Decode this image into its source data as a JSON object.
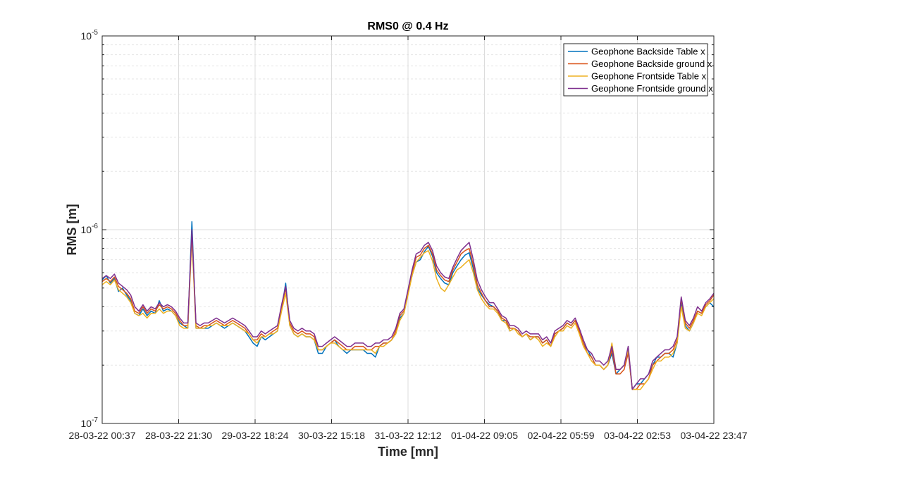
{
  "chart_data": {
    "type": "line",
    "title": "RMS0 @ 0.4 Hz",
    "xlabel": "Time [mn]",
    "ylabel": "RMS [m]",
    "yscale": "log",
    "ylim": [
      1e-07,
      1e-05
    ],
    "grid": true,
    "legend_position": "top-right",
    "x_ticks": [
      "28-03-22 00:37",
      "28-03-22 21:30",
      "29-03-22 18:24",
      "30-03-22 15:18",
      "31-03-22 12:12",
      "01-04-22 09:05",
      "02-04-22 05:59",
      "03-04-22 02:53",
      "03-04-22 23:47"
    ],
    "y_ticks": [
      {
        "value": 1e-07,
        "base": "10",
        "exp": "-7"
      },
      {
        "value": 1e-06,
        "base": "10",
        "exp": "-6"
      },
      {
        "value": 1e-05,
        "base": "10",
        "exp": "-5"
      }
    ],
    "x_start": "28-03-22 00:37",
    "x_end": "03-04-22 23:47",
    "series": [
      {
        "name": "Geophone Backside Table x",
        "color": "#0072BD",
        "values": [
          5.5e-07,
          5.8e-07,
          5.3e-07,
          5.6e-07,
          4.8e-07,
          5e-07,
          4.6e-07,
          4.3e-07,
          3.7e-07,
          3.6e-07,
          3.9e-07,
          3.6e-07,
          3.8e-07,
          3.7e-07,
          4.3e-07,
          3.8e-07,
          3.9e-07,
          3.8e-07,
          3.6e-07,
          3.3e-07,
          3.2e-07,
          3.1e-07,
          1.1e-06,
          3.1e-07,
          3.1e-07,
          3.1e-07,
          3.1e-07,
          3.2e-07,
          3.3e-07,
          3.2e-07,
          3.1e-07,
          3.2e-07,
          3.3e-07,
          3.2e-07,
          3.1e-07,
          3e-07,
          2.8e-07,
          2.6e-07,
          2.5e-07,
          2.8e-07,
          2.7e-07,
          2.8e-07,
          2.9e-07,
          3e-07,
          3.9e-07,
          5.3e-07,
          3.2e-07,
          2.9e-07,
          2.8e-07,
          2.9e-07,
          2.8e-07,
          2.8e-07,
          2.7e-07,
          2.3e-07,
          2.3e-07,
          2.5e-07,
          2.6e-07,
          2.7e-07,
          2.5e-07,
          2.4e-07,
          2.3e-07,
          2.4e-07,
          2.4e-07,
          2.4e-07,
          2.4e-07,
          2.3e-07,
          2.3e-07,
          2.2e-07,
          2.5e-07,
          2.6e-07,
          2.6e-07,
          2.7e-07,
          2.9e-07,
          3.5e-07,
          3.7e-07,
          4.7e-07,
          5.8e-07,
          6.8e-07,
          7e-07,
          7.7e-07,
          8.2e-07,
          7.3e-07,
          6e-07,
          5.6e-07,
          5.3e-07,
          5.2e-07,
          6e-07,
          6.5e-07,
          7e-07,
          7.4e-07,
          7.6e-07,
          6.3e-07,
          5e-07,
          4.6e-07,
          4.3e-07,
          4.1e-07,
          4e-07,
          3.8e-07,
          3.4e-07,
          3.4e-07,
          3e-07,
          3.1e-07,
          3e-07,
          2.8e-07,
          2.9e-07,
          2.7e-07,
          2.8e-07,
          2.8e-07,
          2.6e-07,
          2.7e-07,
          2.5e-07,
          2.9e-07,
          3e-07,
          3.1e-07,
          3.3e-07,
          3.2e-07,
          3.4e-07,
          3e-07,
          2.6e-07,
          2.4e-07,
          2.2e-07,
          2e-07,
          2e-07,
          1.9e-07,
          2e-07,
          2.3e-07,
          1.8e-07,
          1.9e-07,
          2e-07,
          2.4e-07,
          1.5e-07,
          1.6e-07,
          1.6e-07,
          1.7e-07,
          1.8e-07,
          2e-07,
          2.2e-07,
          2.2e-07,
          2.3e-07,
          2.3e-07,
          2.2e-07,
          2.6e-07,
          4.2e-07,
          3.2e-07,
          3e-07,
          3.3e-07,
          3.8e-07,
          3.7e-07,
          4e-07,
          4.2e-07,
          4e-07
        ]
      },
      {
        "name": "Geophone Backside ground x",
        "color": "#D95319",
        "values": [
          5.4e-07,
          5.6e-07,
          5.4e-07,
          5.7e-07,
          5.1e-07,
          4.9e-07,
          4.7e-07,
          4.4e-07,
          3.8e-07,
          3.7e-07,
          4e-07,
          3.7e-07,
          3.9e-07,
          3.8e-07,
          4.1e-07,
          3.9e-07,
          4e-07,
          3.9e-07,
          3.7e-07,
          3.4e-07,
          3.2e-07,
          3.2e-07,
          9.5e-07,
          3.2e-07,
          3.1e-07,
          3.2e-07,
          3.2e-07,
          3.3e-07,
          3.4e-07,
          3.3e-07,
          3.2e-07,
          3.3e-07,
          3.4e-07,
          3.3e-07,
          3.2e-07,
          3.1e-07,
          2.9e-07,
          2.7e-07,
          2.7e-07,
          2.9e-07,
          2.8e-07,
          2.9e-07,
          3e-07,
          3.1e-07,
          4e-07,
          5e-07,
          3.3e-07,
          3e-07,
          2.9e-07,
          3e-07,
          2.9e-07,
          2.9e-07,
          2.8e-07,
          2.4e-07,
          2.4e-07,
          2.5e-07,
          2.6e-07,
          2.7e-07,
          2.6e-07,
          2.5e-07,
          2.4e-07,
          2.4e-07,
          2.5e-07,
          2.5e-07,
          2.5e-07,
          2.4e-07,
          2.4e-07,
          2.5e-07,
          2.5e-07,
          2.6e-07,
          2.6e-07,
          2.7e-07,
          3e-07,
          3.6e-07,
          3.8e-07,
          4.8e-07,
          6e-07,
          7.2e-07,
          7.4e-07,
          8e-07,
          8.3e-07,
          7.5e-07,
          6.2e-07,
          5.8e-07,
          5.5e-07,
          5.4e-07,
          6.2e-07,
          6.8e-07,
          7.5e-07,
          7.8e-07,
          8e-07,
          6.6e-07,
          5.2e-07,
          4.7e-07,
          4.3e-07,
          4e-07,
          4e-07,
          3.8e-07,
          3.5e-07,
          3.4e-07,
          3.1e-07,
          3.1e-07,
          3e-07,
          2.8e-07,
          2.9e-07,
          2.8e-07,
          2.8e-07,
          2.8e-07,
          2.6e-07,
          2.7e-07,
          2.5e-07,
          2.9e-07,
          3e-07,
          3.1e-07,
          3.3e-07,
          3.2e-07,
          3.4e-07,
          3e-07,
          2.6e-07,
          2.3e-07,
          2.2e-07,
          2e-07,
          2e-07,
          1.9e-07,
          2e-07,
          2.4e-07,
          1.8e-07,
          1.8e-07,
          1.9e-07,
          2.3e-07,
          1.5e-07,
          1.5e-07,
          1.6e-07,
          1.6e-07,
          1.7e-07,
          2e-07,
          2.1e-07,
          2.2e-07,
          2.3e-07,
          2.3e-07,
          2.4e-07,
          2.7e-07,
          4.4e-07,
          3.3e-07,
          3.1e-07,
          3.4e-07,
          3.8e-07,
          3.7e-07,
          4.1e-07,
          4.3e-07,
          4.6e-07
        ]
      },
      {
        "name": "Geophone Frontside Table x",
        "color": "#EDB120",
        "values": [
          5.2e-07,
          5.4e-07,
          5.2e-07,
          5.5e-07,
          4.9e-07,
          4.7e-07,
          4.5e-07,
          4.2e-07,
          3.7e-07,
          3.6e-07,
          3.7e-07,
          3.5e-07,
          3.7e-07,
          3.7e-07,
          3.9e-07,
          3.7e-07,
          3.8e-07,
          3.8e-07,
          3.6e-07,
          3.2e-07,
          3.1e-07,
          3.1e-07,
          9e-07,
          3.1e-07,
          3.1e-07,
          3.1e-07,
          3.2e-07,
          3.2e-07,
          3.3e-07,
          3.2e-07,
          3.2e-07,
          3.2e-07,
          3.3e-07,
          3.2e-07,
          3.1e-07,
          3e-07,
          2.9e-07,
          2.7e-07,
          2.6e-07,
          2.8e-07,
          2.8e-07,
          2.9e-07,
          2.9e-07,
          3e-07,
          3.8e-07,
          4.7e-07,
          3.2e-07,
          2.9e-07,
          2.8e-07,
          2.9e-07,
          2.8e-07,
          2.8e-07,
          2.7e-07,
          2.4e-07,
          2.4e-07,
          2.5e-07,
          2.6e-07,
          2.6e-07,
          2.5e-07,
          2.4e-07,
          2.4e-07,
          2.4e-07,
          2.4e-07,
          2.4e-07,
          2.4e-07,
          2.4e-07,
          2.4e-07,
          2.3e-07,
          2.5e-07,
          2.5e-07,
          2.6e-07,
          2.7e-07,
          2.9e-07,
          3.4e-07,
          3.7e-07,
          4.6e-07,
          5.8e-07,
          6.8e-07,
          7.2e-07,
          7.6e-07,
          7.8e-07,
          6.9e-07,
          5.6e-07,
          5e-07,
          4.8e-07,
          5.2e-07,
          5.7e-07,
          6.2e-07,
          6.4e-07,
          6.7e-07,
          7e-07,
          6e-07,
          4.9e-07,
          4.4e-07,
          4.1e-07,
          3.9e-07,
          3.9e-07,
          3.7e-07,
          3.4e-07,
          3.3e-07,
          3e-07,
          3.1e-07,
          2.9e-07,
          2.8e-07,
          2.9e-07,
          2.7e-07,
          2.8e-07,
          2.7e-07,
          2.5e-07,
          2.6e-07,
          2.5e-07,
          2.8e-07,
          3e-07,
          3e-07,
          3.2e-07,
          3.1e-07,
          3.3e-07,
          2.9e-07,
          2.5e-07,
          2.3e-07,
          2.1e-07,
          2e-07,
          2e-07,
          1.9e-07,
          2e-07,
          2.6e-07,
          1.9e-07,
          1.9e-07,
          2e-07,
          2.4e-07,
          1.5e-07,
          1.5e-07,
          1.5e-07,
          1.6e-07,
          1.7e-07,
          1.9e-07,
          2.1e-07,
          2.1e-07,
          2.2e-07,
          2.2e-07,
          2.3e-07,
          2.6e-07,
          4e-07,
          3.1e-07,
          3e-07,
          3.3e-07,
          3.7e-07,
          3.6e-07,
          4e-07,
          4.2e-07,
          4.4e-07
        ]
      },
      {
        "name": "Geophone Frontside ground x",
        "color": "#7E2F8E",
        "values": [
          5.6e-07,
          5.8e-07,
          5.6e-07,
          5.9e-07,
          5.3e-07,
          5.1e-07,
          4.9e-07,
          4.6e-07,
          4e-07,
          3.8e-07,
          4.1e-07,
          3.8e-07,
          4e-07,
          3.9e-07,
          4.2e-07,
          4e-07,
          4.1e-07,
          4e-07,
          3.8e-07,
          3.5e-07,
          3.3e-07,
          3.3e-07,
          1e-06,
          3.3e-07,
          3.2e-07,
          3.3e-07,
          3.3e-07,
          3.4e-07,
          3.5e-07,
          3.4e-07,
          3.3e-07,
          3.4e-07,
          3.5e-07,
          3.4e-07,
          3.3e-07,
          3.2e-07,
          3e-07,
          2.8e-07,
          2.8e-07,
          3e-07,
          2.9e-07,
          3e-07,
          3.1e-07,
          3.2e-07,
          4.1e-07,
          5.1e-07,
          3.4e-07,
          3.1e-07,
          3e-07,
          3.1e-07,
          3e-07,
          3e-07,
          2.9e-07,
          2.5e-07,
          2.5e-07,
          2.6e-07,
          2.7e-07,
          2.8e-07,
          2.7e-07,
          2.6e-07,
          2.5e-07,
          2.5e-07,
          2.6e-07,
          2.6e-07,
          2.6e-07,
          2.5e-07,
          2.5e-07,
          2.6e-07,
          2.6e-07,
          2.7e-07,
          2.7e-07,
          2.8e-07,
          3.1e-07,
          3.7e-07,
          3.9e-07,
          4.9e-07,
          6.2e-07,
          7.5e-07,
          7.7e-07,
          8.3e-07,
          8.6e-07,
          7.8e-07,
          6.5e-07,
          6e-07,
          5.7e-07,
          5.6e-07,
          6.4e-07,
          7.1e-07,
          7.8e-07,
          8.2e-07,
          8.6e-07,
          7e-07,
          5.5e-07,
          4.9e-07,
          4.5e-07,
          4.2e-07,
          4.2e-07,
          3.9e-07,
          3.6e-07,
          3.5e-07,
          3.2e-07,
          3.2e-07,
          3.1e-07,
          2.9e-07,
          3e-07,
          2.9e-07,
          2.9e-07,
          2.9e-07,
          2.7e-07,
          2.8e-07,
          2.6e-07,
          3e-07,
          3.1e-07,
          3.2e-07,
          3.4e-07,
          3.3e-07,
          3.5e-07,
          3.1e-07,
          2.7e-07,
          2.4e-07,
          2.3e-07,
          2.1e-07,
          2.1e-07,
          2e-07,
          2.1e-07,
          2.5e-07,
          1.9e-07,
          1.9e-07,
          2e-07,
          2.5e-07,
          1.5e-07,
          1.6e-07,
          1.7e-07,
          1.7e-07,
          1.8e-07,
          2.1e-07,
          2.2e-07,
          2.3e-07,
          2.4e-07,
          2.4e-07,
          2.5e-07,
          2.8e-07,
          4.5e-07,
          3.4e-07,
          3.2e-07,
          3.5e-07,
          4e-07,
          3.8e-07,
          4.2e-07,
          4.4e-07,
          4.7e-07
        ]
      }
    ]
  }
}
